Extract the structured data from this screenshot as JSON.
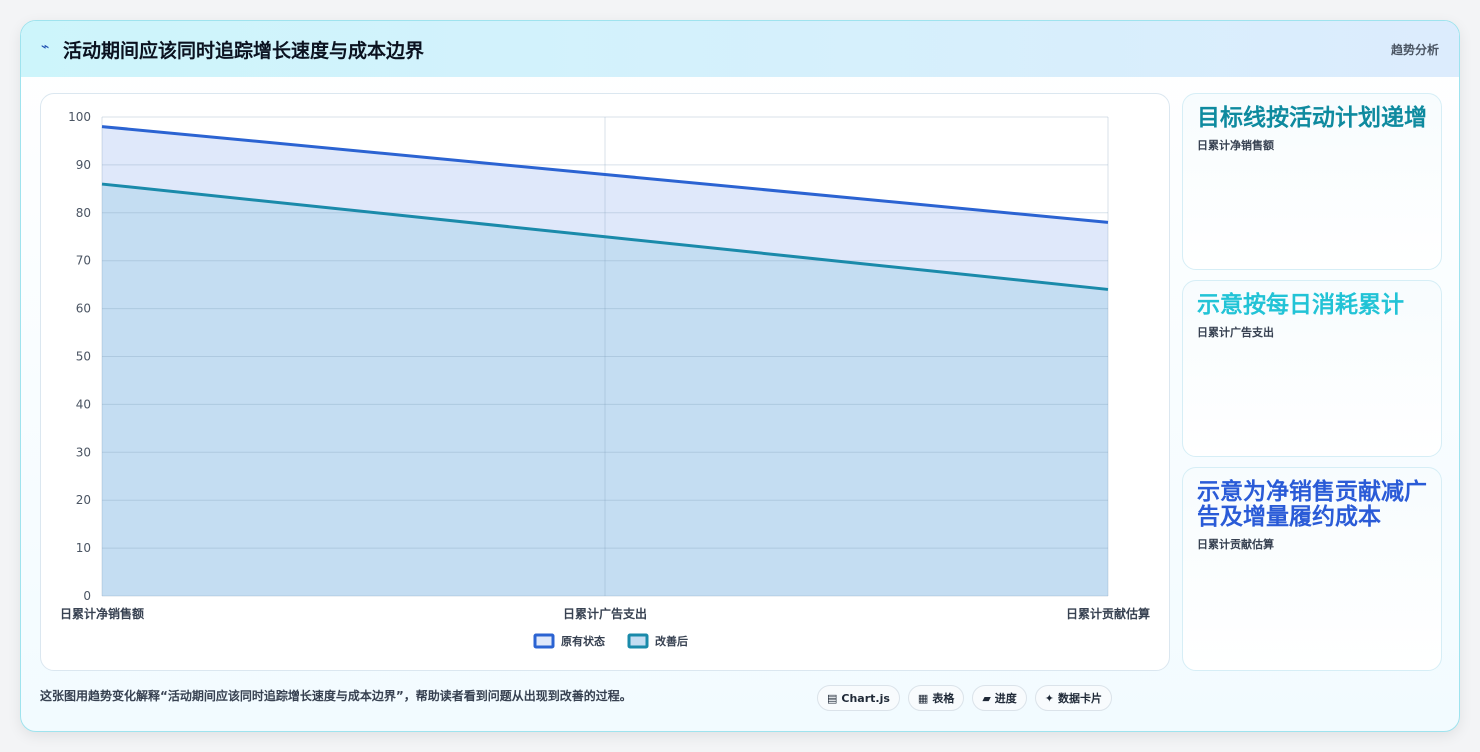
{
  "header": {
    "icon": "⌁",
    "title": "活动期间应该同时追踪增长速度与成本边界",
    "tag": "趋势分析"
  },
  "chart_data": {
    "type": "area",
    "categories": [
      "日累计净销售额",
      "日累计广告支出",
      "日累计贡献估算"
    ],
    "series": [
      {
        "name": "原有状态",
        "values": [
          98,
          88,
          78
        ],
        "color": "#2b63d2",
        "fill": "#dfe8fa"
      },
      {
        "name": "改善后",
        "values": [
          86,
          75,
          64
        ],
        "color": "#1a8aaa",
        "fill": "#c4ddf2"
      }
    ],
    "ylim": [
      0,
      100
    ],
    "yticks": [
      0,
      10,
      20,
      30,
      40,
      50,
      60,
      70,
      80,
      90,
      100
    ],
    "grid": true,
    "legend": "bottom"
  },
  "side_cards": [
    {
      "headline": "目标线按活动计划递增",
      "caption": "日累计净销售额",
      "color": "#0e8a9f"
    },
    {
      "headline": "示意按每日消耗累计",
      "caption": "日累计广告支出",
      "color": "#22c3d6"
    },
    {
      "headline": "示意为净销售贡献减广告及增量履约成本",
      "caption": "日累计贡献估算",
      "color": "#2a5bd7"
    }
  ],
  "footer": {
    "note": "这张图用趋势变化解释“活动期间应该同时追踪增长速度与成本边界”，帮助读者看到问题从出现到改善的过程。",
    "chips": [
      {
        "icon": "▤",
        "label": "Chart.js"
      },
      {
        "icon": "▦",
        "label": "表格"
      },
      {
        "icon": "▰",
        "label": "进度"
      },
      {
        "icon": "✦",
        "label": "数据卡片"
      }
    ]
  }
}
